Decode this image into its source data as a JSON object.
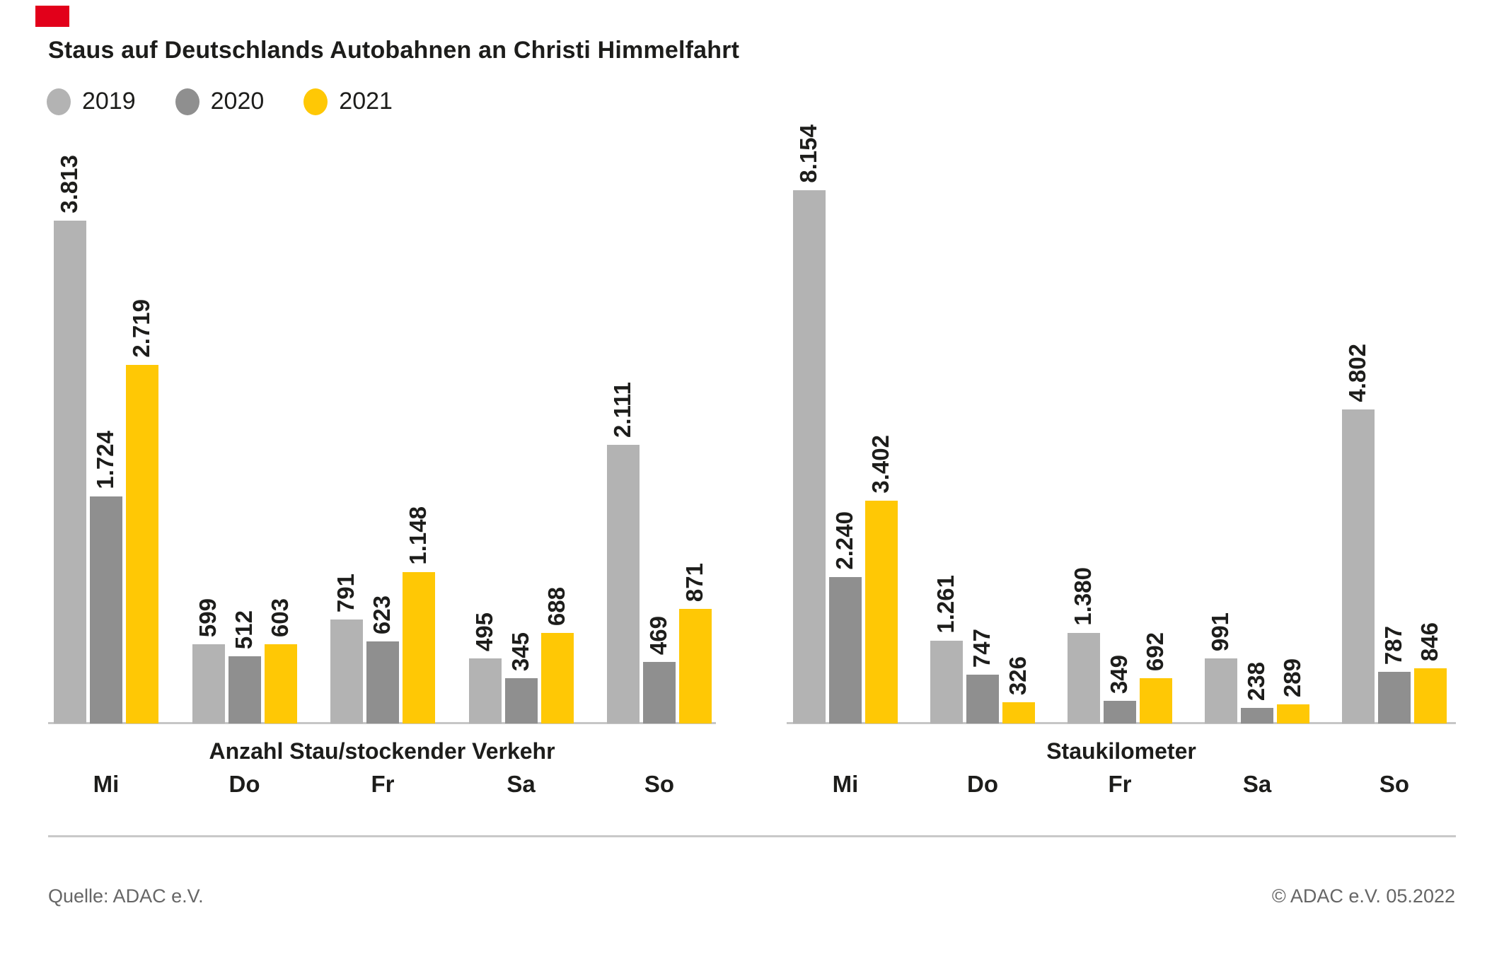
{
  "title": "Staus auf Deutschlands Autobahnen an Christi Himmelfahrt",
  "brand": {
    "square_color": "#e2001a"
  },
  "legend": [
    {
      "label": "2019",
      "color": "#b3b3b3"
    },
    {
      "label": "2020",
      "color": "#8f8f8f"
    },
    {
      "label": "2021",
      "color": "#ffc805"
    }
  ],
  "colors": {
    "text": "#1d1d1b",
    "axis_line": "#c6c6c6",
    "divider": "#c9c9c9",
    "footer_text": "#666666"
  },
  "chart_data": [
    {
      "type": "bar",
      "title": "Anzahl Stau/stockender Verkehr",
      "categories": [
        "Mi",
        "Do",
        "Fr",
        "Sa",
        "So"
      ],
      "series": [
        {
          "name": "2019",
          "values": [
            3813,
            599,
            791,
            495,
            2111
          ],
          "labels": [
            "3.813",
            "599",
            "791",
            "495",
            "2.111"
          ]
        },
        {
          "name": "2020",
          "values": [
            1724,
            512,
            623,
            345,
            469
          ],
          "labels": [
            "1.724",
            "512",
            "623",
            "345",
            "469"
          ]
        },
        {
          "name": "2021",
          "values": [
            2719,
            603,
            1148,
            688,
            871
          ],
          "labels": [
            "2.719",
            "603",
            "1.148",
            "688",
            "871"
          ]
        }
      ],
      "ylim": [
        0,
        3813
      ],
      "grid": false,
      "value_label_rotation": -90,
      "legend_position": "top-left"
    },
    {
      "type": "bar",
      "title": "Staukilometer",
      "categories": [
        "Mi",
        "Do",
        "Fr",
        "Sa",
        "So"
      ],
      "series": [
        {
          "name": "2019",
          "values": [
            8154,
            1261,
            1380,
            991,
            4802
          ],
          "labels": [
            "8.154",
            "1.261",
            "1.380",
            "991",
            "4.802"
          ]
        },
        {
          "name": "2020",
          "values": [
            2240,
            747,
            349,
            238,
            787
          ],
          "labels": [
            "2.240",
            "747",
            "349",
            "238",
            "787"
          ]
        },
        {
          "name": "2021",
          "values": [
            3402,
            326,
            692,
            289,
            846
          ],
          "labels": [
            "3.402",
            "326",
            "692",
            "289",
            "846"
          ]
        }
      ],
      "ylim": [
        0,
        8154
      ],
      "grid": false,
      "value_label_rotation": -90,
      "legend_position": "top-left"
    }
  ],
  "footer": {
    "source": "Quelle: ADAC e.V.",
    "copyright": "© ADAC e.V. 05.2022"
  }
}
